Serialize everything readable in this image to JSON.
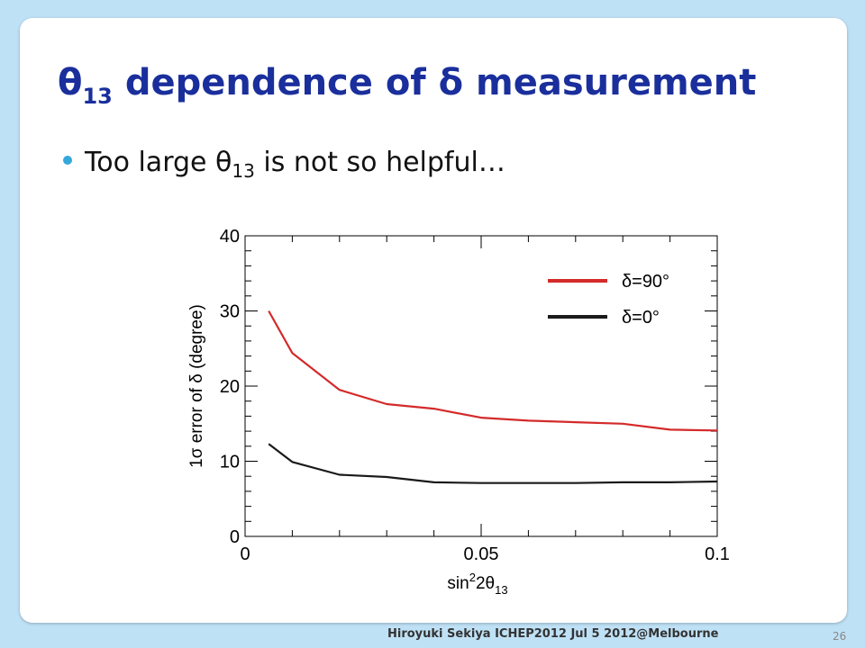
{
  "slide": {
    "title_theta": "θ",
    "title_sub": "13",
    "title_rest": " dependence of δ measurement",
    "bullet_pre": "Too large θ",
    "bullet_sub": "13",
    "bullet_post": " is not so helpful…",
    "footer": "Hiroyuki Sekiya  ICHEP2012 Jul  5 2012@Melbourne",
    "page_number": "26"
  },
  "colors": {
    "title": "#1a2f9c",
    "bullet_dot": "#35a7dc",
    "series_delta90": "#d42a2a",
    "series_delta0": "#1a1a1a"
  },
  "chart_data": {
    "type": "line",
    "title": "",
    "xlabel_base": "sin",
    "xlabel_sup": "2",
    "xlabel_mid": "2θ",
    "xlabel_sub": "13",
    "ylabel": "1σ error of δ (degree)",
    "xlim": [
      0,
      0.1
    ],
    "ylim": [
      0,
      40
    ],
    "x_ticks": [
      {
        "value": 0,
        "label": "0"
      },
      {
        "value": 0.05,
        "label": "0.05"
      },
      {
        "value": 0.1,
        "label": "0.1"
      }
    ],
    "y_ticks": [
      {
        "value": 0,
        "label": "0"
      },
      {
        "value": 10,
        "label": "10"
      },
      {
        "value": 20,
        "label": "20"
      },
      {
        "value": 30,
        "label": "30"
      },
      {
        "value": 40,
        "label": "40"
      }
    ],
    "grid": false,
    "legend_position": "top-right",
    "series": [
      {
        "name": "δ=90°",
        "color": "#d42a2a",
        "x": [
          0.005,
          0.01,
          0.02,
          0.03,
          0.04,
          0.05,
          0.06,
          0.07,
          0.08,
          0.09,
          0.1
        ],
        "y": [
          30.0,
          24.4,
          19.5,
          17.6,
          17.0,
          15.8,
          15.4,
          15.2,
          15.0,
          14.2,
          14.1
        ]
      },
      {
        "name": "δ=0°",
        "color": "#1a1a1a",
        "x": [
          0.005,
          0.01,
          0.02,
          0.03,
          0.04,
          0.05,
          0.06,
          0.07,
          0.08,
          0.09,
          0.1
        ],
        "y": [
          12.3,
          9.9,
          8.2,
          7.9,
          7.2,
          7.1,
          7.1,
          7.1,
          7.2,
          7.2,
          7.3
        ]
      }
    ]
  }
}
